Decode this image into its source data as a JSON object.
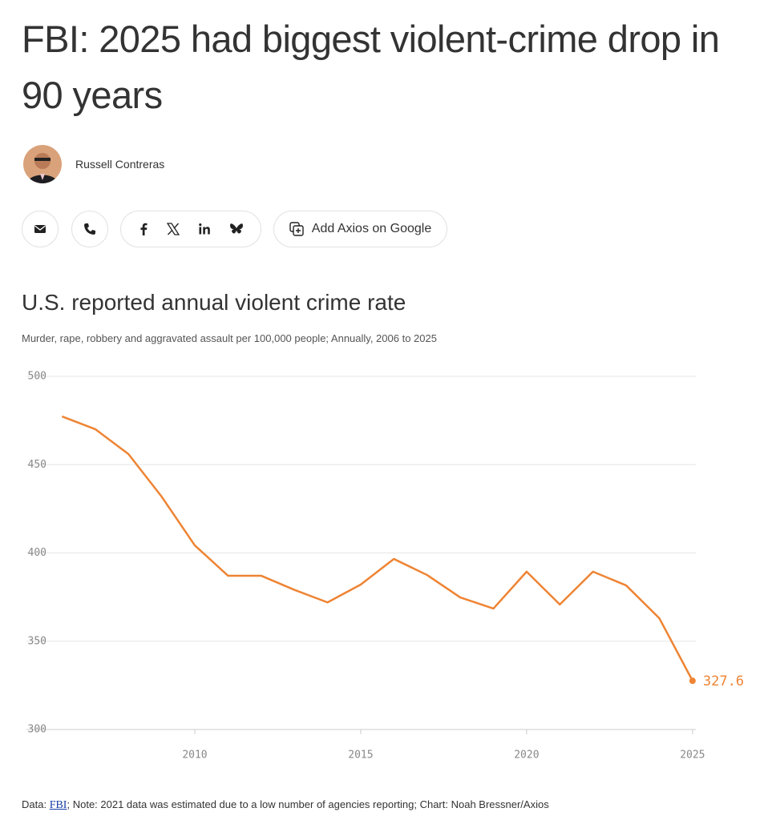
{
  "header": {
    "title": "FBI: 2025 had biggest violent-crime drop in 90 years"
  },
  "author": {
    "name": "Russell Contreras"
  },
  "buttons": {
    "google": "Add Axios on Google"
  },
  "chart_data": {
    "type": "line",
    "title": "U.S. reported annual violent crime rate",
    "subtitle": "Murder, rape, robbery and aggravated assault per 100,000 people; Annually, 2006 to 2025",
    "x": [
      2006,
      2007,
      2008,
      2009,
      2010,
      2011,
      2012,
      2013,
      2014,
      2015,
      2016,
      2017,
      2018,
      2019,
      2020,
      2021,
      2022,
      2023,
      2024,
      2025
    ],
    "series": [
      {
        "color": "#ee8434",
        "values": [
          477.3,
          470.1,
          456.0,
          431.9,
          404.3,
          387.1,
          387.1,
          379.1,
          372.0,
          382.1,
          396.6,
          387.5,
          374.8,
          368.5,
          389.4,
          370.8,
          389.4,
          381.6,
          363.0,
          327.6
        ]
      }
    ],
    "xlim": [
      2005.7,
      2025.1
    ],
    "xticks": [
      2010,
      2015,
      2020,
      2025
    ],
    "ylim": [
      300,
      500
    ],
    "yticks": [
      300,
      350,
      400,
      450,
      500
    ],
    "grid": true
  },
  "footer": {
    "prefix": "Data: ",
    "link": "FBI",
    "rest": "; Note: 2021 data was estimated due to a low number of agencies reporting; Chart: Noah Bressner/Axios"
  }
}
